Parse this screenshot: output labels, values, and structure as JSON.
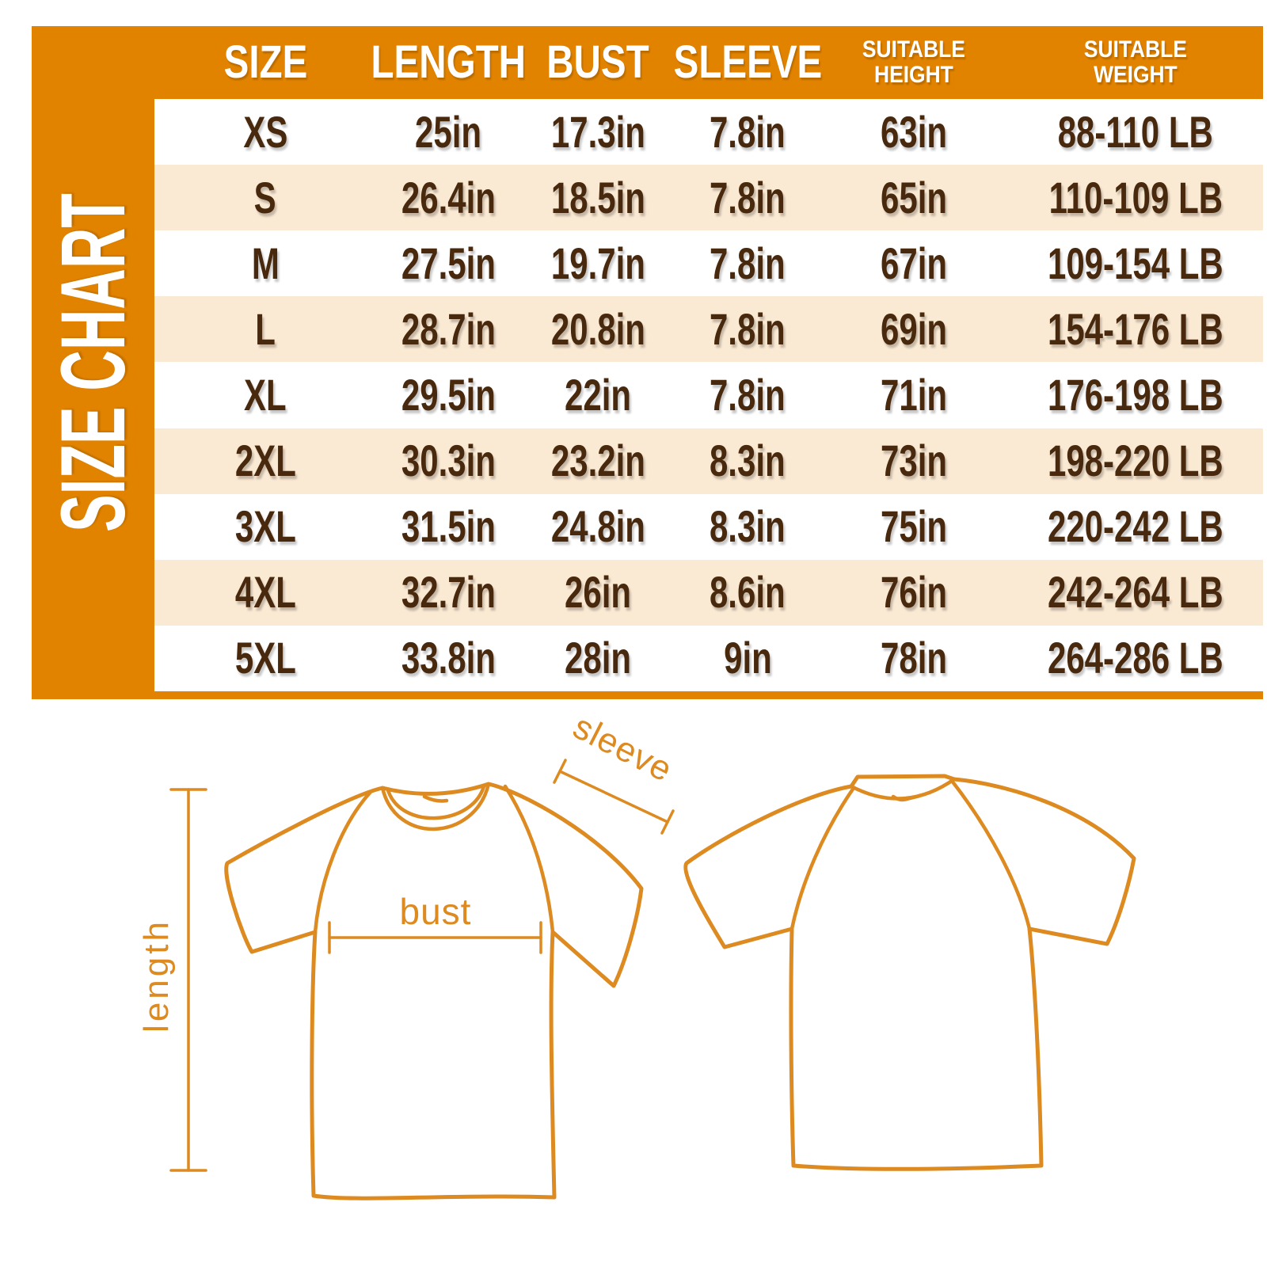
{
  "table": {
    "title": "SIZE CHART",
    "columns": [
      {
        "id": "size",
        "lines": [
          "SIZE"
        ]
      },
      {
        "id": "length",
        "lines": [
          "LENGTH"
        ]
      },
      {
        "id": "bust",
        "lines": [
          "BUST"
        ]
      },
      {
        "id": "sleeve",
        "lines": [
          "SLEEVE"
        ]
      },
      {
        "id": "suitable-height",
        "lines": [
          "SUITABLE",
          "HEIGHT"
        ]
      },
      {
        "id": "suitable-weight",
        "lines": [
          "SUITABLE",
          "WEIGHT"
        ]
      }
    ],
    "fields": [
      "size",
      "length",
      "bust",
      "sleeve",
      "height",
      "weight"
    ],
    "rows": [
      {
        "size": "XS",
        "length": "25in",
        "bust": "17.3in",
        "sleeve": "7.8in",
        "height": "63in",
        "weight": "88-110 LB"
      },
      {
        "size": "S",
        "length": "26.4in",
        "bust": "18.5in",
        "sleeve": "7.8in",
        "height": "65in",
        "weight": "110-109 LB"
      },
      {
        "size": "M",
        "length": "27.5in",
        "bust": "19.7in",
        "sleeve": "7.8in",
        "height": "67in",
        "weight": "109-154 LB"
      },
      {
        "size": "L",
        "length": "28.7in",
        "bust": "20.8in",
        "sleeve": "7.8in",
        "height": "69in",
        "weight": "154-176 LB"
      },
      {
        "size": "XL",
        "length": "29.5in",
        "bust": "22in",
        "sleeve": "7.8in",
        "height": "71in",
        "weight": "176-198 LB"
      },
      {
        "size": "2XL",
        "length": "30.3in",
        "bust": "23.2in",
        "sleeve": "8.3in",
        "height": "73in",
        "weight": "198-220 LB"
      },
      {
        "size": "3XL",
        "length": "31.5in",
        "bust": "24.8in",
        "sleeve": "8.3in",
        "height": "75in",
        "weight": "220-242 LB"
      },
      {
        "size": "4XL",
        "length": "32.7in",
        "bust": "26in",
        "sleeve": "8.6in",
        "height": "76in",
        "weight": "242-264 LB"
      },
      {
        "size": "5XL",
        "length": "33.8in",
        "bust": "28in",
        "sleeve": "9in",
        "height": "78in",
        "weight": "264-286 LB"
      }
    ]
  },
  "diagram": {
    "labels": {
      "sleeve": "sleeve",
      "bust": "bust",
      "length": "length"
    }
  },
  "colors": {
    "orange": "#E28300",
    "peach_stripe": "#FAE9D3",
    "brown_text": "#49290D",
    "line_orange": "#DD8A20",
    "header_text": "#FFFFFF"
  },
  "chart_data": {
    "type": "table",
    "title": "SIZE CHART",
    "columns": [
      "SIZE",
      "LENGTH",
      "BUST",
      "SLEEVE",
      "SUITABLE HEIGHT",
      "SUITABLE WEIGHT"
    ],
    "rows": [
      [
        "XS",
        "25in",
        "17.3in",
        "7.8in",
        "63in",
        "88-110 LB"
      ],
      [
        "S",
        "26.4in",
        "18.5in",
        "7.8in",
        "65in",
        "110-109 LB"
      ],
      [
        "M",
        "27.5in",
        "19.7in",
        "7.8in",
        "67in",
        "109-154 LB"
      ],
      [
        "L",
        "28.7in",
        "20.8in",
        "7.8in",
        "69in",
        "154-176 LB"
      ],
      [
        "XL",
        "29.5in",
        "22in",
        "7.8in",
        "71in",
        "176-198 LB"
      ],
      [
        "2XL",
        "30.3in",
        "23.2in",
        "8.3in",
        "73in",
        "198-220 LB"
      ],
      [
        "3XL",
        "31.5in",
        "24.8in",
        "8.3in",
        "75in",
        "220-242 LB"
      ],
      [
        "4XL",
        "32.7in",
        "26in",
        "8.6in",
        "76in",
        "242-264 LB"
      ],
      [
        "5XL",
        "33.8in",
        "28in",
        "9in",
        "78in",
        "264-286 LB"
      ]
    ]
  }
}
